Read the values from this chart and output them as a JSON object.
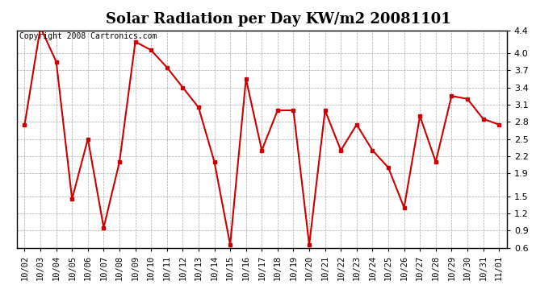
{
  "title": "Solar Radiation per Day KW/m2 20081101",
  "copyright_text": "Copyright 2008 Cartronics.com",
  "x_labels": [
    "10/02",
    "10/03",
    "10/04",
    "10/05",
    "10/06",
    "10/07",
    "10/08",
    "10/09",
    "10/10",
    "10/11",
    "10/12",
    "10/13",
    "10/14",
    "10/15",
    "10/16",
    "10/17",
    "10/18",
    "10/19",
    "10/20",
    "10/21",
    "10/22",
    "10/23",
    "10/24",
    "10/25",
    "10/26",
    "10/27",
    "10/28",
    "10/29",
    "10/30",
    "10/31",
    "11/01"
  ],
  "y_values": [
    2.75,
    4.45,
    3.85,
    1.45,
    2.5,
    0.95,
    2.1,
    4.2,
    4.05,
    3.75,
    3.4,
    3.05,
    2.1,
    0.65,
    3.55,
    2.3,
    3.0,
    3.0,
    0.65,
    3.0,
    2.3,
    2.75,
    2.3,
    2.0,
    1.3,
    2.9,
    2.1,
    3.25,
    3.2,
    2.85,
    2.75
  ],
  "line_color": "#cc0000",
  "marker": "s",
  "marker_size": 3,
  "line_width": 1.5,
  "ylim": [
    0.6,
    4.4
  ],
  "yticks": [
    0.6,
    0.9,
    1.2,
    1.5,
    1.9,
    2.2,
    2.5,
    2.8,
    3.1,
    3.4,
    3.7,
    4.0,
    4.4
  ],
  "background_color": "#ffffff",
  "grid_color": "#aaaaaa",
  "title_fontsize": 13,
  "copyright_fontsize": 7,
  "tick_fontsize": 7.5,
  "ytick_fontsize": 8
}
